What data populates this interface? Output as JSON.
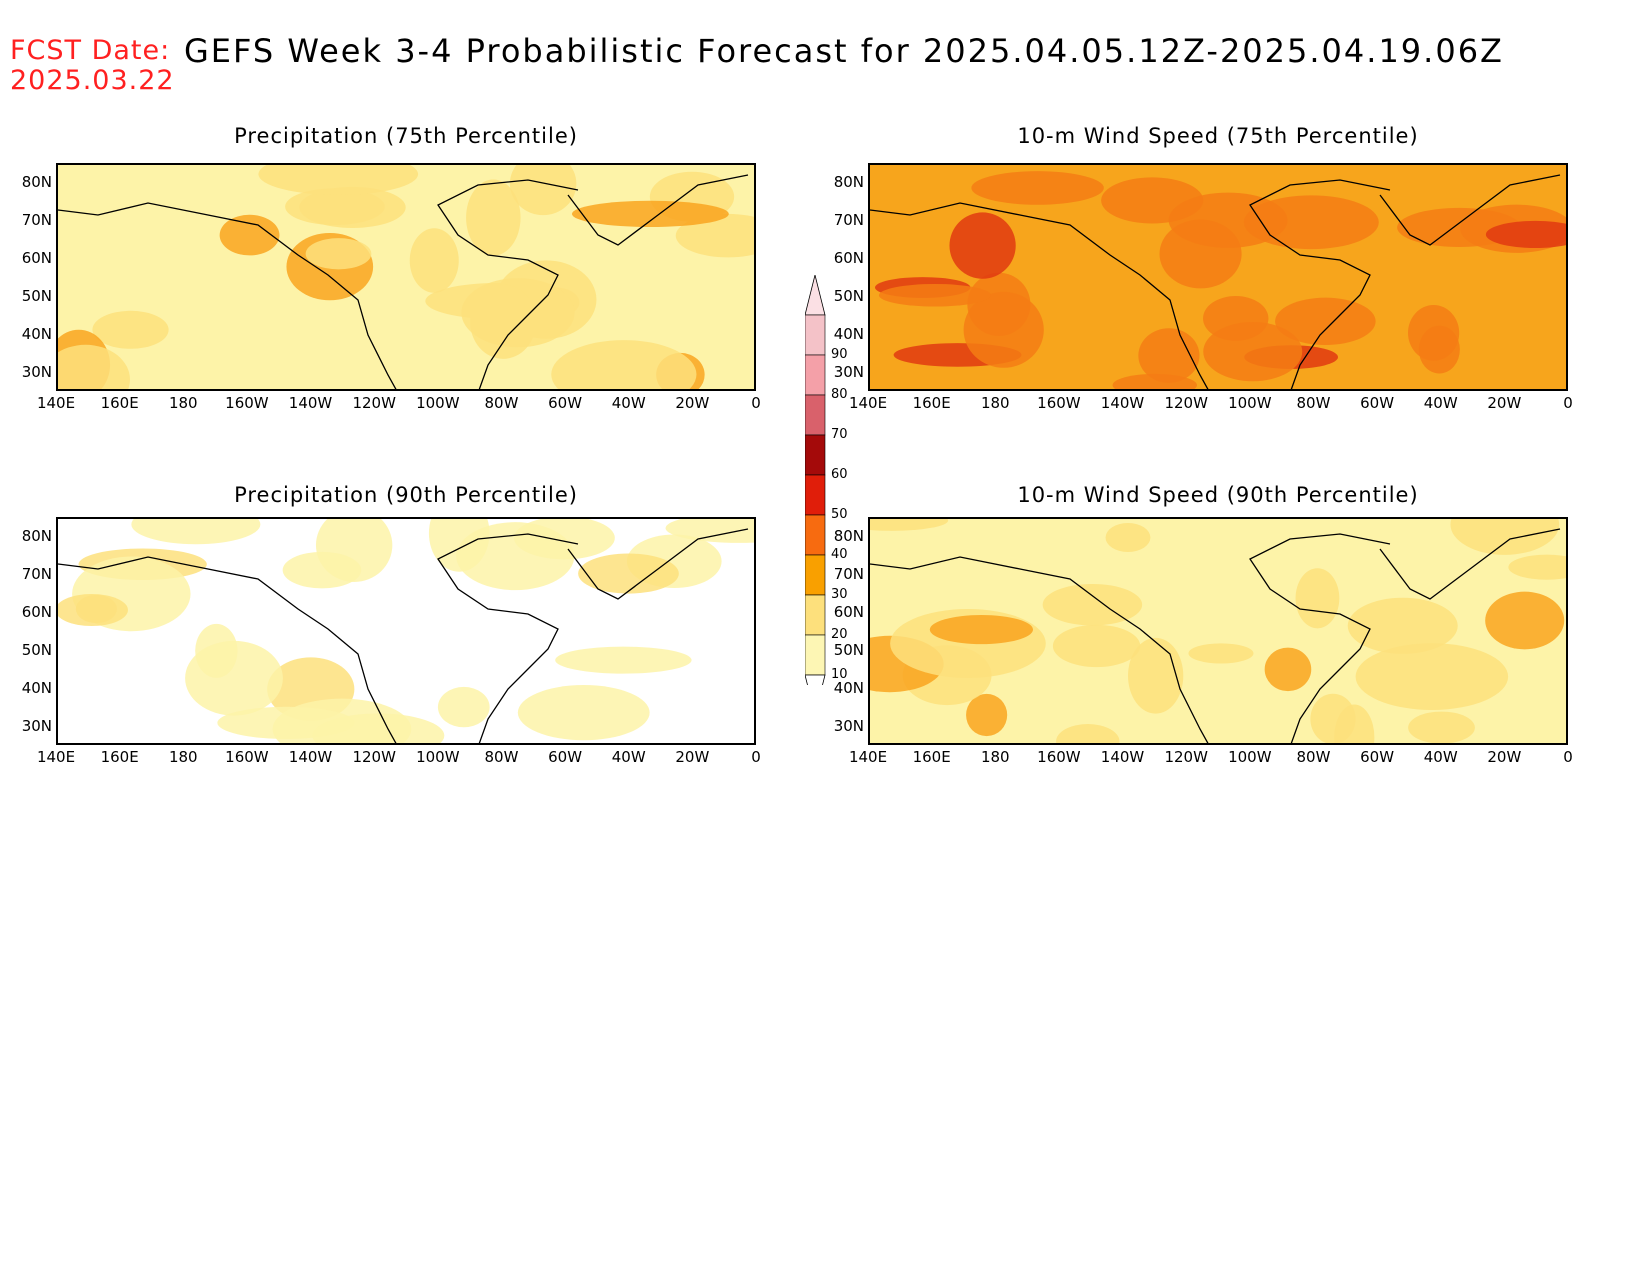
{
  "header": {
    "fcst_label": "FCST Date:",
    "fcst_date": "2025.03.22",
    "title": "GEFS Week 3-4 Probabilistic Forecast for 2025.04.05.12Z-2025.04.19.06Z"
  },
  "panels": [
    {
      "title": "Precipitation (75th Percentile)",
      "dominant": "#fdf3a8",
      "secondary": "#fde07c",
      "accent": "#f9a520"
    },
    {
      "title": "10-m Wind Speed (75th Percentile)",
      "dominant": "#f7a51c",
      "secondary": "#f57c14",
      "accent": "#e13a10"
    },
    {
      "title": "Precipitation (90th Percentile)",
      "dominant": "#ffffff",
      "secondary": "#fdf3a8",
      "accent": "#fde07c"
    },
    {
      "title": "10-m Wind Speed (90th Percentile)",
      "dominant": "#fdf3a8",
      "secondary": "#fde07c",
      "accent": "#f9a520"
    }
  ],
  "axes": {
    "lat_ticks": [
      "80N",
      "70N",
      "60N",
      "50N",
      "40N",
      "30N"
    ],
    "lon_ticks": [
      "140E",
      "160E",
      "180",
      "160W",
      "140W",
      "120W",
      "100W",
      "80W",
      "60W",
      "40W",
      "20W",
      "0"
    ]
  },
  "colorbar": {
    "levels": [
      "90",
      "80",
      "70",
      "60",
      "50",
      "40",
      "30",
      "20",
      "10"
    ],
    "colors": [
      "#f4c2c8",
      "#f4a0a8",
      "#d9616b",
      "#a40a0a",
      "#e01e0a",
      "#f76b10",
      "#f9a000",
      "#fde07c",
      "#fdf6b4"
    ]
  }
}
